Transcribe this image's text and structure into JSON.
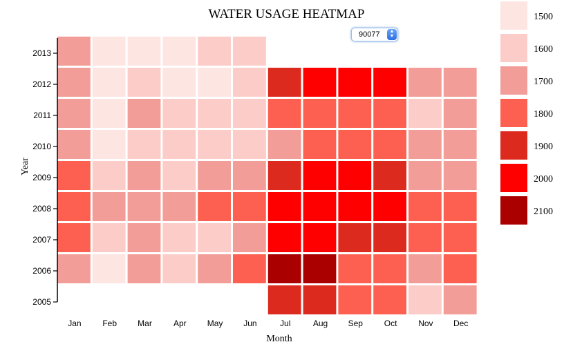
{
  "page": {
    "title": "WATER USAGE HEATMAP",
    "zip_select": {
      "value": "90077"
    }
  },
  "chart_data": {
    "type": "heatmap",
    "title": "WATER USAGE HEATMAP",
    "xlabel": "Month",
    "ylabel": "Year",
    "months": [
      "Jan",
      "Feb",
      "Mar",
      "Apr",
      "May",
      "Jun",
      "Jul",
      "Aug",
      "Sep",
      "Oct",
      "Nov",
      "Dec"
    ],
    "years": [
      "2013",
      "2012",
      "2011",
      "2010",
      "2009",
      "2008",
      "2007",
      "2006",
      "2005"
    ],
    "values": [
      [
        1700,
        1500,
        1500,
        1500,
        1600,
        1600,
        null,
        null,
        null,
        null,
        null,
        null
      ],
      [
        1700,
        1500,
        1600,
        1500,
        1500,
        1600,
        1900,
        2000,
        2000,
        2000,
        1700,
        1700
      ],
      [
        1700,
        1500,
        1700,
        1600,
        1600,
        1600,
        1800,
        1800,
        1800,
        1800,
        1600,
        1700
      ],
      [
        1700,
        1500,
        1600,
        1600,
        1600,
        1600,
        1700,
        1800,
        1800,
        1800,
        1700,
        1700
      ],
      [
        1800,
        1600,
        1700,
        1600,
        1700,
        1700,
        1900,
        2000,
        2000,
        1900,
        1700,
        1700
      ],
      [
        1800,
        1700,
        1700,
        1700,
        1800,
        1800,
        2000,
        2000,
        2000,
        2000,
        1800,
        1800
      ],
      [
        1800,
        1600,
        1700,
        1600,
        1600,
        1700,
        2000,
        2000,
        1900,
        1900,
        1800,
        1800
      ],
      [
        1700,
        1500,
        1700,
        1600,
        1700,
        1800,
        2100,
        2100,
        1800,
        1800,
        1700,
        1800
      ],
      [
        null,
        null,
        null,
        null,
        null,
        null,
        1900,
        1900,
        1800,
        1800,
        1600,
        1700
      ]
    ],
    "legend": {
      "placement": "right",
      "items": [
        {
          "label": "1500",
          "color": "#fde5e2"
        },
        {
          "label": "1600",
          "color": "#fcccc8"
        },
        {
          "label": "1700",
          "color": "#f29d97"
        },
        {
          "label": "1800",
          "color": "#fd6050"
        },
        {
          "label": "1900",
          "color": "#dd2a1e"
        },
        {
          "label": "2000",
          "color": "#ff0000"
        },
        {
          "label": "2100",
          "color": "#aa0000"
        }
      ]
    }
  }
}
